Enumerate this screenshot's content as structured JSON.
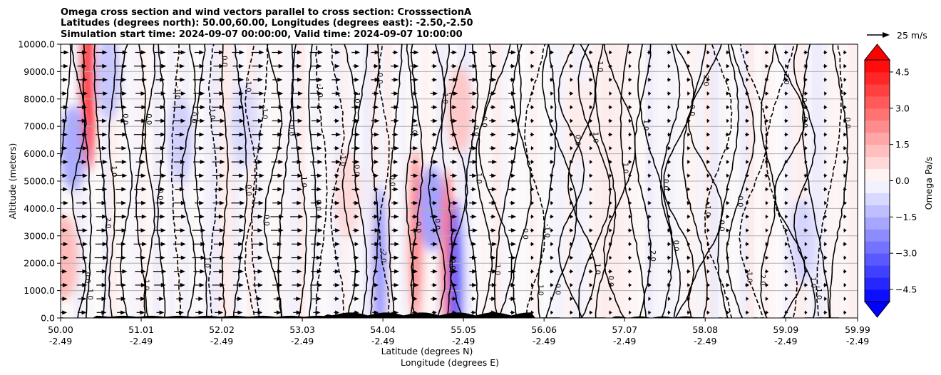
{
  "chart_data": {
    "type": "heatmap",
    "title": [
      "Omega cross section and wind vectors parallel to cross section: CrosssectionA",
      "Latitudes (degrees north): 50.00,60.00, Longitudes (degrees east): -2.50,-2.50",
      "Simulation start time: 2024-09-07 00:00:00, Valid time: 2024-09-07 10:00:00"
    ],
    "xlabel_lines": [
      "Latitude (degrees N)",
      "Longitude (degrees E)"
    ],
    "ylabel": "Altitude (meters)",
    "x_range": [
      50.0,
      59.99
    ],
    "y_range": [
      0,
      10000
    ],
    "x_ticks": [
      {
        "lat": "50.00",
        "lon": "-2.49"
      },
      {
        "lat": "51.01",
        "lon": "-2.49"
      },
      {
        "lat": "52.02",
        "lon": "-2.49"
      },
      {
        "lat": "53.03",
        "lon": "-2.49"
      },
      {
        "lat": "54.04",
        "lon": "-2.49"
      },
      {
        "lat": "55.05",
        "lon": "-2.49"
      },
      {
        "lat": "56.06",
        "lon": "-2.49"
      },
      {
        "lat": "57.07",
        "lon": "-2.49"
      },
      {
        "lat": "58.08",
        "lon": "-2.49"
      },
      {
        "lat": "59.09",
        "lon": "-2.49"
      },
      {
        "lat": "59.99",
        "lon": "-2.49"
      }
    ],
    "y_ticks": [
      "0.0",
      "1000.0",
      "2000.0",
      "3000.0",
      "4000.0",
      "5000.0",
      "6000.0",
      "7000.0",
      "8000.0",
      "9000.0",
      "10000.0"
    ],
    "colorbar": {
      "label": "Omega Pa/s",
      "range": [
        -5.0,
        5.0
      ],
      "tick_values": [
        4.5,
        3.0,
        1.5,
        0.0,
        -1.5,
        -3.0,
        -4.5
      ],
      "tick_labels": [
        "4.5",
        "3.0",
        "1.5",
        "0.0",
        "−1.5",
        "−3.0",
        "−4.5"
      ],
      "extend": "both"
    },
    "quiver_key": {
      "label": "25 m/s"
    },
    "contour_labels": [
      "0.0",
      "1.0",
      "-1.0",
      "2.0",
      "-2.0"
    ],
    "omega_features": [
      {
        "lat": 50.05,
        "alt": 2200,
        "omega": 1.5
      },
      {
        "lat": 50.15,
        "alt": 6200,
        "omega": -1.8
      },
      {
        "lat": 50.35,
        "alt": 8500,
        "omega": 4.5
      },
      {
        "lat": 50.6,
        "alt": 8800,
        "omega": -1.2
      },
      {
        "lat": 51.5,
        "alt": 6500,
        "omega": -1.0
      },
      {
        "lat": 52.3,
        "alt": 7000,
        "omega": -0.8
      },
      {
        "lat": 53.6,
        "alt": 4500,
        "omega": 0.8
      },
      {
        "lat": 54.0,
        "alt": 1700,
        "omega": -2.2
      },
      {
        "lat": 54.45,
        "alt": 3000,
        "omega": 2.6
      },
      {
        "lat": 54.65,
        "alt": 4000,
        "omega": -2.0
      },
      {
        "lat": 54.85,
        "alt": 2300,
        "omega": 2.8
      },
      {
        "lat": 54.95,
        "alt": 1200,
        "omega": -3.5
      },
      {
        "lat": 55.0,
        "alt": 7600,
        "omega": 1.2
      },
      {
        "lat": 56.5,
        "alt": 7200,
        "omega": 0.4
      },
      {
        "lat": 59.3,
        "alt": 2800,
        "omega": -0.9
      }
    ]
  }
}
